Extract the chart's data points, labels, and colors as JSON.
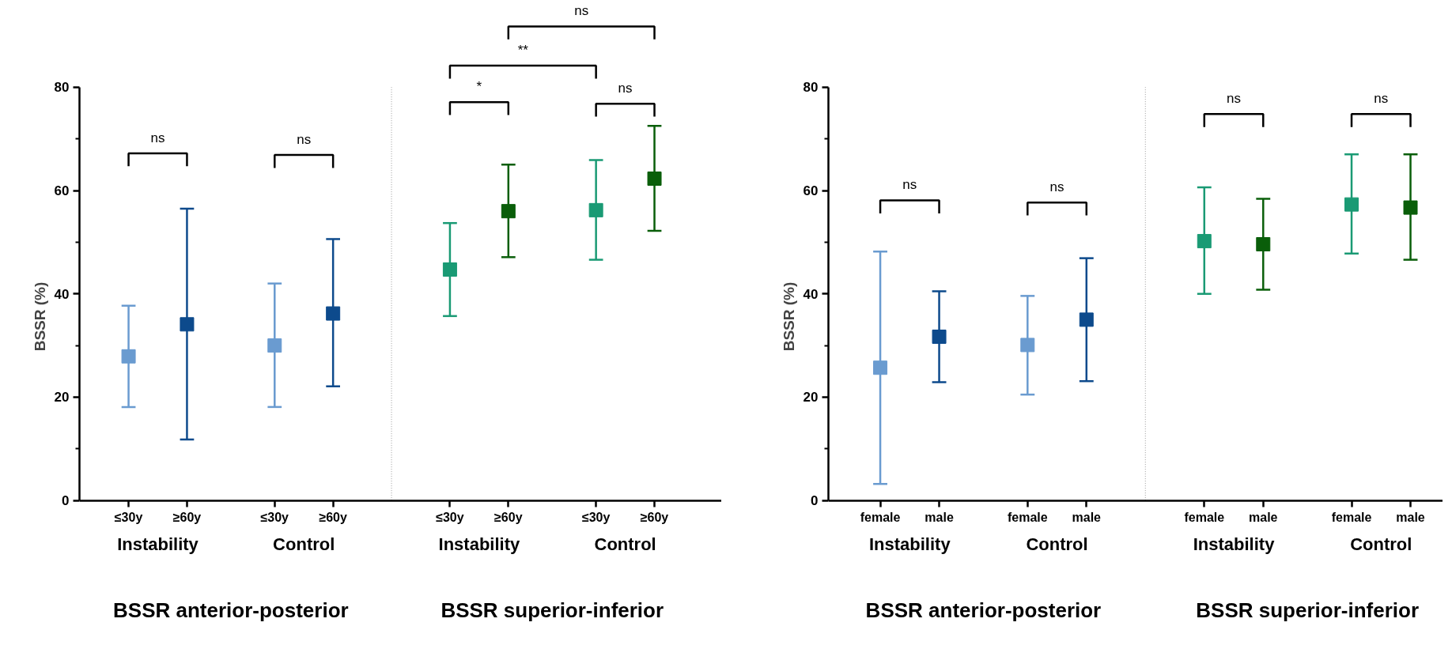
{
  "chart_data": [
    {
      "type": "scatter",
      "ylabel": "BSSR (%)",
      "categories": [
        "≤30y",
        "≥60y",
        "≤30y",
        "≥60y",
        "≤30y",
        "≥60y",
        "≤30y",
        "≥60y"
      ],
      "values": [
        27.9,
        34.1,
        30.0,
        36.2,
        44.7,
        56.0,
        56.2,
        62.3
      ],
      "colors": [
        "#6a9bd0",
        "#0d4a8c",
        "#6a9bd0",
        "#0d4a8c",
        "#1a9a74",
        "#0a5e0a",
        "#1a9a74",
        "#0a5e0a"
      ],
      "errors": [
        [
          18.1,
          37.7
        ],
        [
          11.8,
          56.5
        ],
        [
          18.1,
          42.0
        ],
        [
          22.1,
          50.6
        ],
        [
          35.7,
          53.7
        ],
        [
          47.1,
          65.0
        ],
        [
          46.6,
          65.9
        ],
        [
          52.2,
          72.5
        ]
      ],
      "ylim": [
        0,
        80
      ],
      "yticks": [
        0,
        {
          "value": 10,
          "label": null
        },
        20,
        {
          "value": 30,
          "label": null
        },
        40,
        {
          "value": 50,
          "label": null
        },
        60,
        {
          "value": 70,
          "label": null
        },
        80
      ],
      "marker": "square",
      "grid": false,
      "annotations": [
        "Instability",
        "Control",
        "Instability",
        "Control",
        "BSSR anterior-posterior",
        "BSSR superior-inferior",
        "ns",
        "ns",
        "*",
        "**",
        "ns",
        "ns"
      ]
    },
    {
      "type": "scatter",
      "ylabel": "BSSR (%)",
      "categories": [
        "female",
        "male",
        "female",
        "male",
        "female",
        "male",
        "female",
        "male"
      ],
      "values": [
        25.7,
        31.7,
        30.1,
        35.0,
        50.2,
        49.6,
        57.3,
        56.7
      ],
      "colors": [
        "#6a9bd0",
        "#0d4a8c",
        "#6a9bd0",
        "#0d4a8c",
        "#1a9a74",
        "#0a5e0a",
        "#1a9a74",
        "#0a5e0a"
      ],
      "errors": [
        [
          3.2,
          48.2
        ],
        [
          22.9,
          40.5
        ],
        [
          20.5,
          39.6
        ],
        [
          23.1,
          46.9
        ],
        [
          40.0,
          60.6
        ],
        [
          40.8,
          58.4
        ],
        [
          47.8,
          67.0
        ],
        [
          46.6,
          67.0
        ]
      ],
      "ylim": [
        0,
        80
      ],
      "yticks": [
        0,
        {
          "value": 10,
          "label": null
        },
        20,
        {
          "value": 30,
          "label": null
        },
        40,
        {
          "value": 50,
          "label": null
        },
        60,
        {
          "value": 70,
          "label": null
        },
        80
      ],
      "marker": "square",
      "grid": false,
      "annotations": [
        "Instability",
        "Control",
        "Instability",
        "Control",
        "BSSR anterior-posterior",
        "BSSR superior-inferior",
        "ns",
        "ns",
        "ns",
        "ns"
      ]
    }
  ]
}
